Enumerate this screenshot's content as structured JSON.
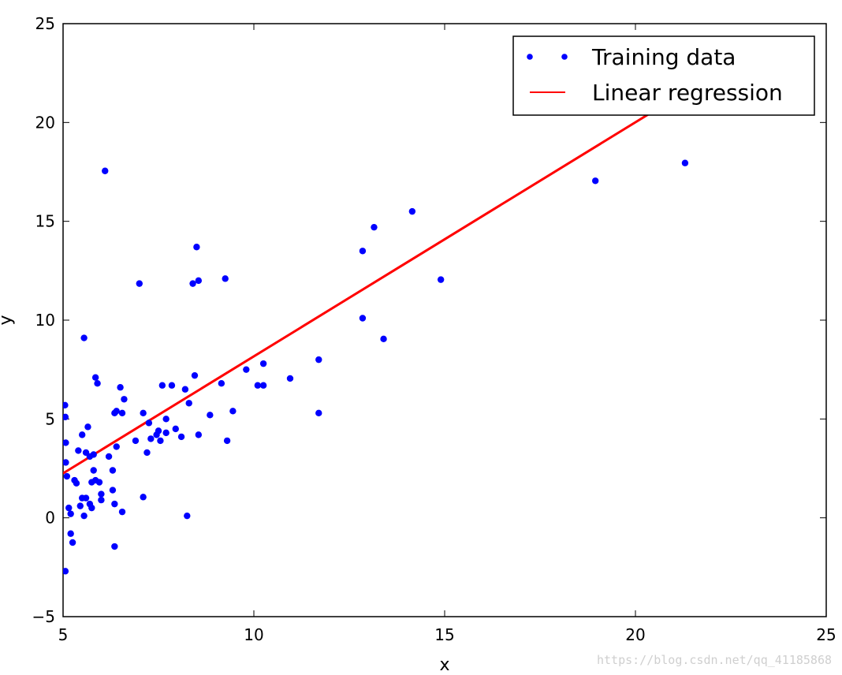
{
  "chart_data": {
    "type": "scatter",
    "title": "",
    "xlabel": "x",
    "ylabel": "y",
    "xlim": [
      5,
      25
    ],
    "ylim": [
      -5,
      25
    ],
    "x_ticks": [
      5,
      10,
      15,
      20,
      25
    ],
    "y_ticks": [
      -5,
      0,
      5,
      10,
      15,
      20,
      25
    ],
    "x_tick_labels": [
      "5",
      "10",
      "15",
      "20",
      "25"
    ],
    "y_tick_labels": [
      "−5",
      "0",
      "5",
      "10",
      "15",
      "20",
      "25"
    ],
    "grid": false,
    "legend_position": "top-right",
    "series": [
      {
        "name": "Training data",
        "kind": "scatter",
        "color": "#0000ff",
        "points": [
          [
            5.05,
            5.7
          ],
          [
            5.06,
            5.1
          ],
          [
            5.07,
            3.8
          ],
          [
            5.07,
            2.8
          ],
          [
            5.06,
            -2.7
          ],
          [
            5.1,
            2.1
          ],
          [
            5.15,
            0.5
          ],
          [
            5.2,
            0.2
          ],
          [
            5.2,
            -0.8
          ],
          [
            5.25,
            -1.25
          ],
          [
            5.3,
            1.9
          ],
          [
            5.35,
            1.75
          ],
          [
            5.4,
            3.4
          ],
          [
            5.45,
            0.6
          ],
          [
            5.5,
            4.2
          ],
          [
            5.5,
            1.0
          ],
          [
            5.55,
            0.1
          ],
          [
            5.55,
            9.1
          ],
          [
            5.6,
            1.0
          ],
          [
            5.6,
            3.3
          ],
          [
            5.65,
            4.6
          ],
          [
            5.7,
            3.1
          ],
          [
            5.7,
            0.7
          ],
          [
            5.75,
            1.8
          ],
          [
            5.75,
            0.5
          ],
          [
            5.8,
            3.2
          ],
          [
            5.8,
            2.4
          ],
          [
            5.85,
            1.9
          ],
          [
            5.85,
            7.1
          ],
          [
            5.9,
            6.8
          ],
          [
            5.95,
            1.8
          ],
          [
            6.0,
            1.2
          ],
          [
            6.0,
            0.9
          ],
          [
            6.1,
            17.55
          ],
          [
            6.2,
            3.1
          ],
          [
            6.3,
            2.4
          ],
          [
            6.3,
            1.4
          ],
          [
            6.35,
            5.3
          ],
          [
            6.35,
            0.7
          ],
          [
            6.35,
            -1.45
          ],
          [
            6.4,
            3.6
          ],
          [
            6.4,
            5.4
          ],
          [
            6.5,
            6.6
          ],
          [
            6.55,
            0.3
          ],
          [
            6.55,
            5.3
          ],
          [
            6.6,
            6.0
          ],
          [
            6.9,
            3.9
          ],
          [
            7.0,
            11.85
          ],
          [
            7.1,
            5.3
          ],
          [
            7.1,
            1.05
          ],
          [
            7.2,
            3.3
          ],
          [
            7.25,
            4.8
          ],
          [
            7.3,
            4.0
          ],
          [
            7.45,
            4.2
          ],
          [
            7.5,
            4.4
          ],
          [
            7.55,
            3.9
          ],
          [
            7.6,
            6.7
          ],
          [
            7.7,
            5.0
          ],
          [
            7.7,
            4.3
          ],
          [
            7.85,
            6.7
          ],
          [
            7.95,
            4.5
          ],
          [
            8.1,
            4.1
          ],
          [
            8.2,
            6.5
          ],
          [
            8.25,
            0.1
          ],
          [
            8.3,
            5.8
          ],
          [
            8.4,
            11.85
          ],
          [
            8.45,
            7.2
          ],
          [
            8.5,
            13.7
          ],
          [
            8.55,
            4.2
          ],
          [
            8.55,
            12.0
          ],
          [
            8.85,
            5.2
          ],
          [
            9.15,
            6.8
          ],
          [
            9.25,
            12.1
          ],
          [
            9.3,
            3.9
          ],
          [
            9.45,
            5.4
          ],
          [
            9.8,
            7.5
          ],
          [
            10.1,
            6.7
          ],
          [
            10.25,
            7.8
          ],
          [
            10.25,
            6.7
          ],
          [
            10.95,
            7.05
          ],
          [
            11.7,
            8.0
          ],
          [
            11.7,
            5.3
          ],
          [
            12.85,
            13.5
          ],
          [
            12.85,
            10.1
          ],
          [
            13.15,
            14.7
          ],
          [
            13.4,
            9.05
          ],
          [
            14.15,
            15.5
          ],
          [
            14.9,
            12.05
          ],
          [
            18.95,
            17.05
          ],
          [
            21.3,
            17.95
          ]
        ]
      },
      {
        "name": "Linear regression",
        "kind": "line",
        "color": "#ff0000",
        "points": [
          [
            5.0,
            2.25
          ],
          [
            21.3,
            21.55
          ]
        ]
      }
    ],
    "legend": {
      "entries": [
        "Training data",
        "Linear regression"
      ]
    }
  },
  "watermark": {
    "text": "https://blog.csdn.net/qq_41185868"
  }
}
